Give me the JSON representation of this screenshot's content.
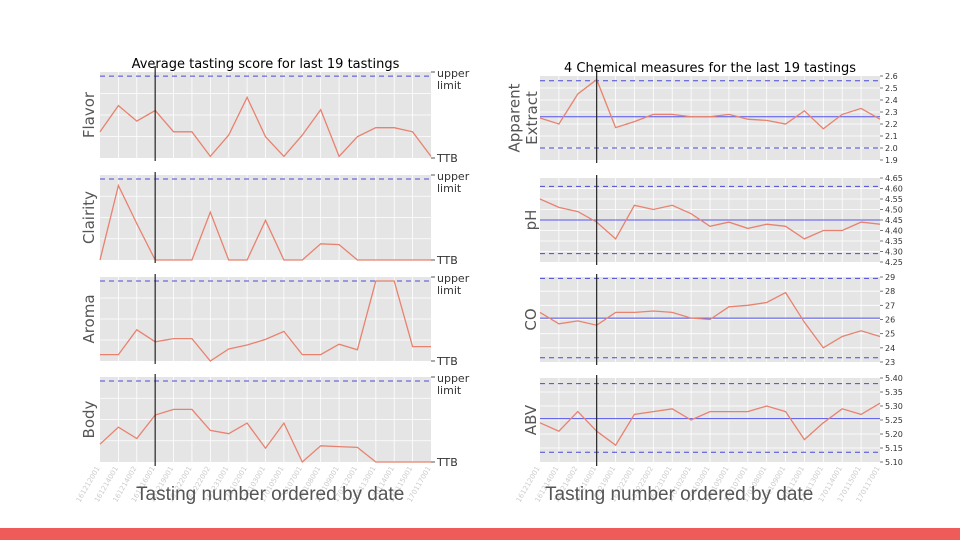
{
  "x_axis_title": "Tasting number ordered by date",
  "x_ticks_left": [
    "161212001",
    "161214001",
    "161214002",
    "161216001",
    "161219001",
    "161222001",
    "161222002",
    "161231001",
    "170102001",
    "170103001",
    "170105001",
    "170107001",
    "170108001",
    "170109001",
    "170112001",
    "170113001",
    "170114001",
    "170115001",
    "170117001"
  ],
  "x_ticks_right": [
    "161212001",
    "161214001",
    "161214002",
    "161216001",
    "161219001",
    "161222001",
    "161222002",
    "161231001",
    "170102001",
    "170103001",
    "170105001",
    "170107001",
    "170108001",
    "170109001",
    "170112001",
    "170113001",
    "170114001",
    "170115001",
    "170117001"
  ],
  "chart_data": [
    {
      "type": "line",
      "title": "Average tasting score for last 19 tastings",
      "ylabel": "Flavor",
      "scale_labels": [
        "upper",
        "limit",
        "TTB"
      ],
      "ylim": [
        0,
        1.05
      ],
      "upper_limit": 1.0,
      "marker_index": 3,
      "values": [
        0.32,
        0.64,
        0.45,
        0.58,
        0.32,
        0.32,
        0.02,
        0.28,
        0.74,
        0.26,
        0.02,
        0.28,
        0.59,
        0.02,
        0.26,
        0.37,
        0.37,
        0.32,
        0.02
      ]
    },
    {
      "type": "line",
      "title": "",
      "ylabel": "Clairity",
      "scale_labels": [
        "upper",
        "limit",
        "TTB"
      ],
      "ylim": [
        0,
        1.05
      ],
      "upper_limit": 1.0,
      "marker_index": 3,
      "values": [
        0.0,
        0.92,
        0.45,
        0.0,
        0.0,
        0.0,
        0.59,
        0.0,
        0.0,
        0.49,
        0.0,
        0.0,
        0.2,
        0.19,
        0.0,
        0.0,
        0.0,
        0.0,
        0.0
      ]
    },
    {
      "type": "line",
      "title": "",
      "ylabel": "Aroma",
      "scale_labels": [
        "upper",
        "limit",
        "TTB"
      ],
      "ylim": [
        0,
        1.05
      ],
      "upper_limit": 1.0,
      "marker_index": 3,
      "values": [
        0.08,
        0.08,
        0.39,
        0.24,
        0.28,
        0.28,
        0.0,
        0.15,
        0.2,
        0.27,
        0.37,
        0.08,
        0.08,
        0.21,
        0.14,
        1.0,
        1.0,
        0.18,
        0.18
      ]
    },
    {
      "type": "line",
      "title": "",
      "ylabel": "Body",
      "scale_labels": [
        "upper",
        "limit",
        "TTB"
      ],
      "ylim": [
        0,
        1.05
      ],
      "upper_limit": 1.0,
      "marker_index": 3,
      "values": [
        0.22,
        0.43,
        0.29,
        0.58,
        0.65,
        0.65,
        0.39,
        0.35,
        0.48,
        0.17,
        0.48,
        0.0,
        0.2,
        0.19,
        0.18,
        0.0,
        0.0,
        0.0,
        0.0
      ]
    },
    {
      "type": "line",
      "title": "4 Chemical measures for the last 19 tastings",
      "ylabel": [
        "Apparent",
        "Extract"
      ],
      "ylim": [
        1.9,
        2.6
      ],
      "yticks": [
        "1.9",
        "2.0",
        "2.1",
        "2.2",
        "2.3",
        "2.4",
        "2.5",
        "2.6"
      ],
      "mean": 2.26,
      "limits": [
        2.0,
        2.56
      ],
      "marker_index": 3,
      "values": [
        2.25,
        2.2,
        2.45,
        2.57,
        2.17,
        2.22,
        2.28,
        2.28,
        2.26,
        2.26,
        2.28,
        2.24,
        2.23,
        2.2,
        2.31,
        2.16,
        2.28,
        2.33,
        2.24
      ]
    },
    {
      "type": "line",
      "title": "",
      "ylabel": "pH",
      "ylim": [
        4.25,
        4.65
      ],
      "yticks": [
        "4.25",
        "4.30",
        "4.35",
        "4.40",
        "4.45",
        "4.50",
        "4.55",
        "4.60",
        "4.65"
      ],
      "mean": 4.45,
      "limits": [
        4.29,
        4.61
      ],
      "marker_index": 3,
      "values": [
        4.55,
        4.51,
        4.49,
        4.44,
        4.36,
        4.52,
        4.5,
        4.52,
        4.48,
        4.42,
        4.44,
        4.41,
        4.43,
        4.42,
        4.36,
        4.4,
        4.4,
        4.44,
        4.43
      ]
    },
    {
      "type": "line",
      "title": "",
      "ylabel": "CO",
      "ylim": [
        23,
        29
      ],
      "yticks": [
        "23",
        "24",
        "25",
        "26",
        "27",
        "28",
        "29"
      ],
      "mean": 26.1,
      "limits": [
        23.3,
        28.9
      ],
      "marker_index": 3,
      "values": [
        26.5,
        25.7,
        25.9,
        25.6,
        26.5,
        26.5,
        26.6,
        26.5,
        26.1,
        26.0,
        26.9,
        27.0,
        27.2,
        27.9,
        25.8,
        24.0,
        24.8,
        25.2,
        24.8
      ]
    },
    {
      "type": "line",
      "title": "",
      "ylabel": "ABV",
      "ylim": [
        5.1,
        5.4
      ],
      "yticks": [
        "5.10",
        "5.15",
        "5.20",
        "5.25",
        "5.30",
        "5.35",
        "5.40"
      ],
      "mean": 5.255,
      "limits": [
        5.135,
        5.38
      ],
      "marker_index": 3,
      "values": [
        5.24,
        5.21,
        5.28,
        5.21,
        5.16,
        5.27,
        5.28,
        5.29,
        5.25,
        5.28,
        5.28,
        5.28,
        5.3,
        5.28,
        5.18,
        5.24,
        5.29,
        5.27,
        5.31
      ]
    }
  ],
  "colors": {
    "panel_bg": "#e5e5e5",
    "grid": "#ffffff",
    "series": "#e8826f",
    "limit_dashed": "#4a4ad8",
    "mean_line": "#5555ee",
    "marker_line": "#222222",
    "footer_bar": "#ee5b59"
  }
}
